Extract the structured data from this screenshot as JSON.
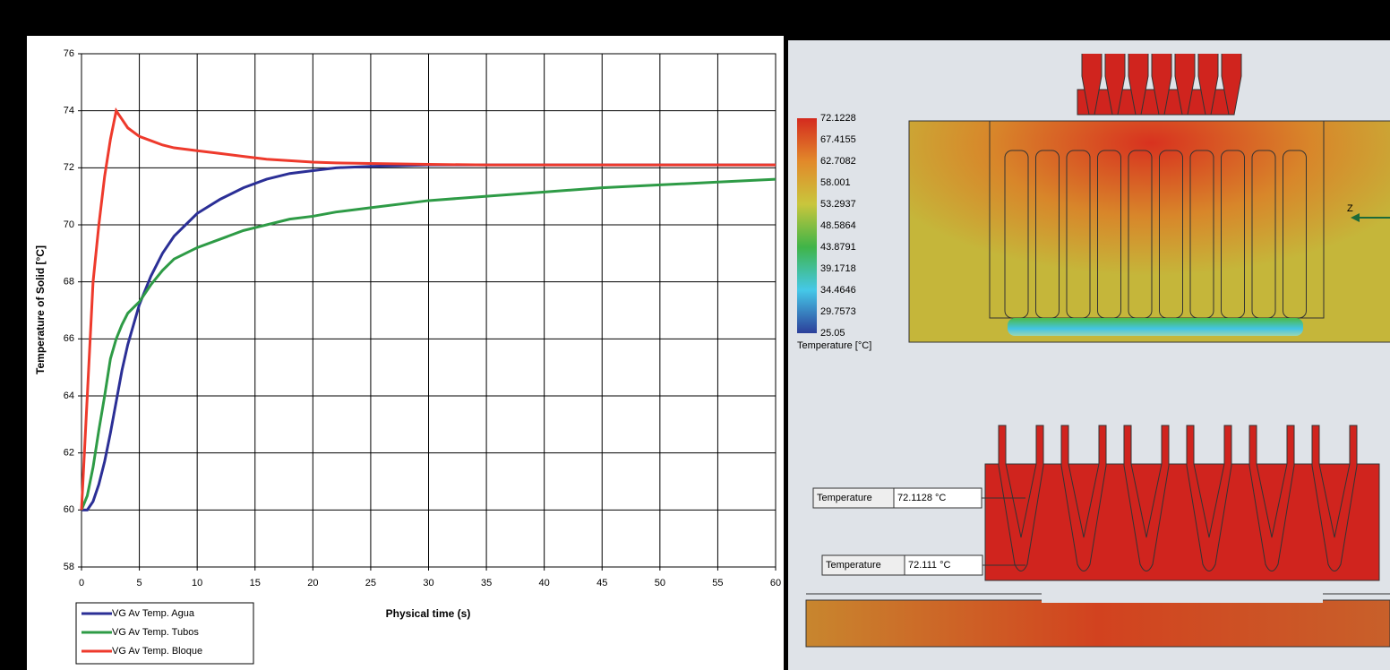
{
  "chart_data": {
    "type": "line",
    "xlabel": "Physical time (s)",
    "ylabel": "Temperature of Solid [°C]",
    "x": [
      0,
      0.5,
      1,
      1.5,
      2,
      2.5,
      3,
      3.5,
      4,
      5,
      6,
      7,
      8,
      9,
      10,
      12,
      14,
      16,
      18,
      20,
      22,
      25,
      30,
      35,
      40,
      45,
      50,
      55,
      60
    ],
    "series": [
      {
        "name": "VG Av Temp. Agua",
        "color": "#2b2f96",
        "values": [
          60,
          60.0,
          60.3,
          60.9,
          61.7,
          62.7,
          63.8,
          64.9,
          65.8,
          67.2,
          68.2,
          69.0,
          69.6,
          70.0,
          70.4,
          70.9,
          71.3,
          71.6,
          71.8,
          71.9,
          72.0,
          72.05,
          72.1,
          72.1,
          72.1,
          72.1,
          72.1,
          72.1,
          72.1
        ]
      },
      {
        "name": "VG Av Temp. Tubos",
        "color": "#2e9b46",
        "values": [
          60,
          60.5,
          61.5,
          62.8,
          64.0,
          65.3,
          66.0,
          66.5,
          66.9,
          67.3,
          67.9,
          68.4,
          68.8,
          69.0,
          69.2,
          69.5,
          69.8,
          70.0,
          70.2,
          70.3,
          70.45,
          70.6,
          70.85,
          71.0,
          71.15,
          71.3,
          71.4,
          71.5,
          71.6
        ]
      },
      {
        "name": "VG Av Temp. Bloque",
        "color": "#ee3a2c",
        "values": [
          60,
          64,
          68,
          70,
          71.7,
          73,
          74,
          73.7,
          73.4,
          73.1,
          72.95,
          72.8,
          72.7,
          72.65,
          72.6,
          72.5,
          72.4,
          72.3,
          72.25,
          72.2,
          72.17,
          72.15,
          72.12,
          72.1,
          72.1,
          72.1,
          72.1,
          72.1,
          72.1
        ]
      }
    ],
    "xlim": [
      0,
      60
    ],
    "xticks": [
      0,
      5,
      10,
      15,
      20,
      25,
      30,
      35,
      40,
      45,
      50,
      55,
      60
    ],
    "ylim": [
      58,
      76
    ],
    "yticks": [
      58,
      60,
      62,
      64,
      66,
      68,
      70,
      72,
      74,
      76
    ],
    "grid": true,
    "legend": "bottom-left"
  },
  "simulation": {
    "colorbar": {
      "ticks": [
        72.1228,
        67.4155,
        62.7082,
        58.001,
        53.2937,
        48.5864,
        43.8791,
        39.1718,
        34.4646,
        29.7573,
        25.05
      ],
      "title": "Temperature [°C]"
    },
    "axis_label": "Z",
    "probes": [
      {
        "label": "Temperature",
        "value": "72.1128 °C"
      },
      {
        "label": "Temperature",
        "value": "72.111 °C"
      }
    ]
  }
}
